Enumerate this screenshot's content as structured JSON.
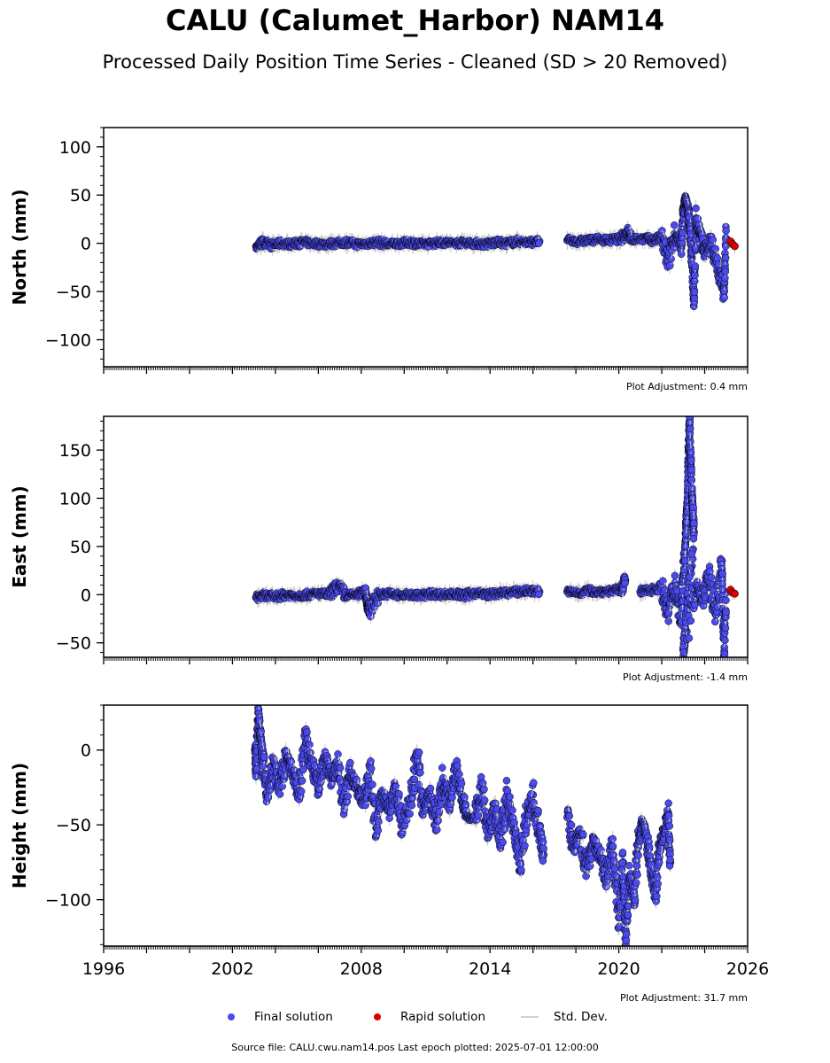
{
  "title": "CALU (Calumet_Harbor) NAM14",
  "subtitle": "Processed Daily Position Time Series - Cleaned (SD > 20 Removed)",
  "legend": {
    "final": "Final solution",
    "rapid": "Rapid solution",
    "std": "Std. Dev."
  },
  "source_note": "Source file: CALU.cwu.nam14.pos  Last epoch plotted: 2025-07-01 12:00:00",
  "colors": {
    "final": "#4a4aee",
    "rapid": "#dd0000",
    "std_dev": "#c8c8c8",
    "marker_edge": "#000000"
  },
  "chart_data": [
    {
      "type": "scatter",
      "panel": "north",
      "ylabel": "North (mm)",
      "ylim": [
        -128,
        120
      ],
      "yticks": [
        100,
        50,
        0,
        -50,
        -100
      ],
      "xlim": [
        1996,
        2026
      ],
      "xticks": [
        1996,
        2002,
        2008,
        2014,
        2020,
        2026
      ],
      "x_ticklabels_shown": false,
      "adjustment": "Plot Adjustment: 0.4 mm",
      "series": [
        {
          "name": "Final solution",
          "points": [
            [
              2003.1,
              -3
            ],
            [
              2003.4,
              1
            ],
            [
              2003.8,
              -2
            ],
            [
              2004.3,
              0
            ],
            [
              2004.8,
              -1
            ],
            [
              2005.3,
              1
            ],
            [
              2005.8,
              0
            ],
            [
              2006.3,
              -1
            ],
            [
              2006.8,
              0
            ],
            [
              2007.3,
              1
            ],
            [
              2007.8,
              -1
            ],
            [
              2008.3,
              0
            ],
            [
              2008.8,
              1
            ],
            [
              2009.3,
              -1
            ],
            [
              2009.8,
              0
            ],
            [
              2010.3,
              1
            ],
            [
              2010.8,
              -1
            ],
            [
              2011.3,
              0
            ],
            [
              2011.8,
              1
            ],
            [
              2012.3,
              0
            ],
            [
              2012.8,
              1
            ],
            [
              2013.3,
              0
            ],
            [
              2013.8,
              -1
            ],
            [
              2014.3,
              1
            ],
            [
              2014.8,
              0
            ],
            [
              2015.3,
              2
            ],
            [
              2015.8,
              1
            ],
            [
              2016.3,
              2
            ],
            [
              2017.6,
              3
            ],
            [
              2018.1,
              2
            ],
            [
              2018.6,
              3
            ],
            [
              2019.1,
              4
            ],
            [
              2019.6,
              3
            ],
            [
              2020.1,
              5
            ],
            [
              2020.4,
              12
            ],
            [
              2020.6,
              4
            ],
            [
              2021.2,
              5
            ],
            [
              2021.6,
              3
            ],
            [
              2022.0,
              6
            ],
            [
              2022.3,
              -20
            ],
            [
              2022.6,
              10
            ],
            [
              2022.9,
              -5
            ],
            [
              2023.0,
              30
            ],
            [
              2023.1,
              45
            ],
            [
              2023.2,
              36
            ],
            [
              2023.3,
              20
            ],
            [
              2023.4,
              -15
            ],
            [
              2023.5,
              -55
            ],
            [
              2023.6,
              26
            ],
            [
              2023.8,
              8
            ],
            [
              2024.0,
              -10
            ],
            [
              2024.3,
              5
            ],
            [
              2024.6,
              -25
            ],
            [
              2024.9,
              -50
            ],
            [
              2025.0,
              5
            ]
          ]
        },
        {
          "name": "Rapid solution",
          "points": [
            [
              2025.2,
              2
            ],
            [
              2025.3,
              -1
            ],
            [
              2025.4,
              -3
            ]
          ]
        }
      ]
    },
    {
      "type": "scatter",
      "panel": "east",
      "ylabel": "East (mm)",
      "ylim": [
        -65,
        185
      ],
      "yticks": [
        150,
        100,
        50,
        0,
        -50
      ],
      "xlim": [
        1996,
        2026
      ],
      "xticks": [
        1996,
        2002,
        2008,
        2014,
        2020,
        2026
      ],
      "x_ticklabels_shown": false,
      "adjustment": "Plot Adjustment: -1.4 mm",
      "series": [
        {
          "name": "Final solution",
          "points": [
            [
              2003.1,
              -3
            ],
            [
              2003.5,
              -1
            ],
            [
              2004.0,
              -2
            ],
            [
              2004.5,
              0
            ],
            [
              2005.0,
              -1
            ],
            [
              2005.5,
              0
            ],
            [
              2006.0,
              1
            ],
            [
              2006.5,
              0
            ],
            [
              2006.9,
              9
            ],
            [
              2007.3,
              -1
            ],
            [
              2007.8,
              0
            ],
            [
              2008.2,
              3
            ],
            [
              2008.3,
              -10
            ],
            [
              2008.4,
              -17
            ],
            [
              2008.8,
              0
            ],
            [
              2009.3,
              1
            ],
            [
              2009.8,
              -1
            ],
            [
              2010.3,
              0
            ],
            [
              2010.8,
              -1
            ],
            [
              2011.3,
              1
            ],
            [
              2011.8,
              0
            ],
            [
              2012.3,
              1
            ],
            [
              2012.8,
              -1
            ],
            [
              2013.3,
              2
            ],
            [
              2013.8,
              0
            ],
            [
              2014.3,
              1
            ],
            [
              2014.8,
              2
            ],
            [
              2015.3,
              3
            ],
            [
              2015.8,
              4
            ],
            [
              2016.3,
              3
            ],
            [
              2017.6,
              3
            ],
            [
              2018.1,
              2
            ],
            [
              2018.6,
              4
            ],
            [
              2019.1,
              3
            ],
            [
              2019.6,
              4
            ],
            [
              2020.1,
              5
            ],
            [
              2020.3,
              15
            ],
            [
              2021.0,
              3
            ],
            [
              2021.5,
              5
            ],
            [
              2022.0,
              8
            ],
            [
              2022.3,
              -20
            ],
            [
              2022.6,
              12
            ],
            [
              2022.9,
              -25
            ],
            [
              2023.0,
              20
            ],
            [
              2023.1,
              55
            ],
            [
              2023.15,
              80
            ],
            [
              2023.2,
              95
            ],
            [
              2023.25,
              152
            ],
            [
              2023.3,
              180
            ],
            [
              2023.35,
              140
            ],
            [
              2023.4,
              108
            ],
            [
              2023.45,
              90
            ],
            [
              2023.5,
              65
            ],
            [
              2023.1,
              -40
            ],
            [
              2023.0,
              -57
            ],
            [
              2023.6,
              10
            ],
            [
              2023.9,
              -5
            ],
            [
              2024.2,
              20
            ],
            [
              2024.5,
              -20
            ],
            [
              2024.8,
              35
            ],
            [
              2024.9,
              -63
            ],
            [
              2025.0,
              2
            ]
          ]
        },
        {
          "name": "Rapid solution",
          "points": [
            [
              2025.2,
              5
            ],
            [
              2025.3,
              2
            ],
            [
              2025.4,
              1
            ]
          ]
        }
      ]
    },
    {
      "type": "scatter",
      "panel": "height",
      "ylabel": "Height (mm)",
      "ylim": [
        -131,
        30
      ],
      "yticks": [
        0,
        -50,
        -100
      ],
      "xlim": [
        1996,
        2026
      ],
      "xticks": [
        1996,
        2002,
        2008,
        2014,
        2020,
        2026
      ],
      "x_ticklabels_shown": true,
      "adjustment": "Plot Adjustment: 31.7 mm",
      "series": [
        {
          "name": "Final solution",
          "points": [
            [
              2003.05,
              0
            ],
            [
              2003.1,
              -15
            ],
            [
              2003.2,
              25
            ],
            [
              2003.3,
              10
            ],
            [
              2003.4,
              -5
            ],
            [
              2003.6,
              -30
            ],
            [
              2003.9,
              -10
            ],
            [
              2004.2,
              -25
            ],
            [
              2004.5,
              -5
            ],
            [
              2004.8,
              -15
            ],
            [
              2005.1,
              -30
            ],
            [
              2005.4,
              8
            ],
            [
              2005.7,
              -10
            ],
            [
              2006.0,
              -25
            ],
            [
              2006.3,
              -5
            ],
            [
              2006.6,
              -20
            ],
            [
              2006.9,
              -10
            ],
            [
              2007.2,
              -35
            ],
            [
              2007.5,
              -15
            ],
            [
              2007.8,
              -25
            ],
            [
              2008.1,
              -35
            ],
            [
              2008.4,
              -15
            ],
            [
              2008.7,
              -52
            ],
            [
              2009.0,
              -30
            ],
            [
              2009.3,
              -40
            ],
            [
              2009.6,
              -25
            ],
            [
              2009.9,
              -50
            ],
            [
              2010.3,
              -35
            ],
            [
              2010.6,
              -2
            ],
            [
              2010.9,
              -40
            ],
            [
              2011.2,
              -30
            ],
            [
              2011.5,
              -48
            ],
            [
              2011.8,
              -20
            ],
            [
              2012.1,
              -35
            ],
            [
              2012.4,
              -10
            ],
            [
              2012.7,
              -30
            ],
            [
              2012.9,
              -45
            ],
            [
              2013.3,
              -45
            ],
            [
              2013.6,
              -25
            ],
            [
              2013.9,
              -55
            ],
            [
              2014.2,
              -40
            ],
            [
              2014.5,
              -60
            ],
            [
              2014.8,
              -30
            ],
            [
              2015.1,
              -50
            ],
            [
              2015.4,
              -75
            ],
            [
              2015.7,
              -45
            ],
            [
              2016.0,
              -30
            ],
            [
              2016.3,
              -55
            ],
            [
              2016.5,
              -70
            ],
            [
              2017.6,
              -45
            ],
            [
              2017.9,
              -65
            ],
            [
              2018.2,
              -55
            ],
            [
              2018.5,
              -80
            ],
            [
              2018.8,
              -60
            ],
            [
              2019.1,
              -70
            ],
            [
              2019.4,
              -85
            ],
            [
              2019.7,
              -65
            ],
            [
              2020.0,
              -112
            ],
            [
              2020.2,
              -75
            ],
            [
              2020.3,
              -126
            ],
            [
              2020.5,
              -85
            ],
            [
              2020.7,
              -98
            ],
            [
              2020.9,
              -65
            ],
            [
              2021.1,
              -50
            ],
            [
              2021.3,
              -60
            ],
            [
              2021.5,
              -80
            ],
            [
              2021.7,
              -95
            ],
            [
              2021.9,
              -65
            ],
            [
              2022.1,
              -55
            ],
            [
              2022.3,
              -42
            ],
            [
              2022.4,
              -75
            ]
          ]
        }
      ]
    }
  ]
}
